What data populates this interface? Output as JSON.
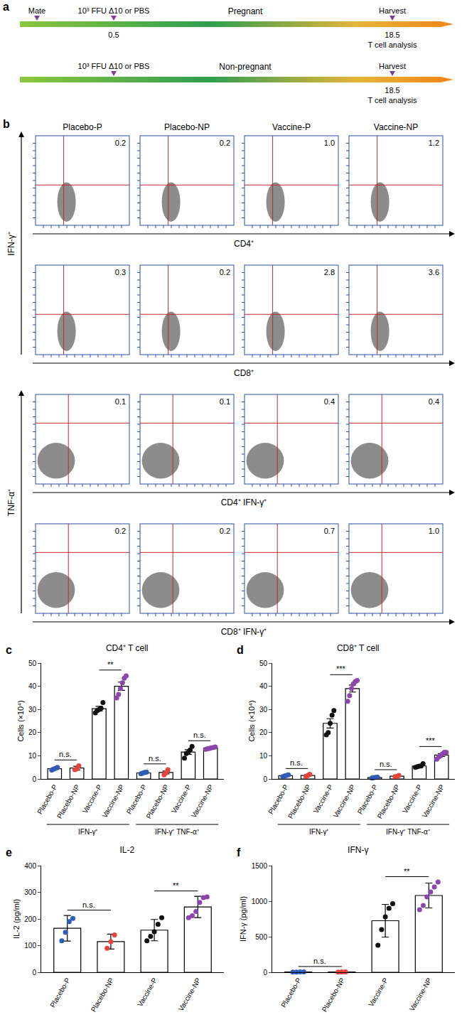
{
  "panel_a": {
    "label": "a",
    "rows": [
      {
        "name": "Pregnant",
        "events": [
          {
            "text": "Mate"
          },
          {
            "text": "10³ FFU Δ10 or PBS",
            "day": "0.5"
          },
          {
            "text": "Harvest",
            "day": "18.5",
            "note": "T cell analysis"
          }
        ]
      },
      {
        "name": "Non-pregnant",
        "events": [
          null,
          {
            "text": "10³ FFU Δ10 or PBS"
          },
          {
            "text": "Harvest",
            "day": "18.5",
            "note": "T cell analysis"
          }
        ]
      }
    ]
  },
  "panel_b": {
    "label": "b",
    "columns": [
      "Placebo-P",
      "Placebo-NP",
      "Vaccine-P",
      "Vaccine-NP"
    ],
    "y_labels": [
      {
        "text": "IFN-γ⁺",
        "rows": 2
      },
      {
        "text": "TNF-α⁺",
        "rows": 2
      }
    ],
    "rows": [
      {
        "x_label": "CD4⁺",
        "values": [
          0.2,
          0.2,
          1.0,
          1.2
        ],
        "value_labels": [
          "0.2",
          "0.2",
          "1.0",
          "1.2"
        ]
      },
      {
        "x_label": "CD8⁺",
        "values": [
          0.3,
          0.2,
          2.8,
          3.6
        ],
        "value_labels": [
          "0.3",
          "0.2",
          "2.8",
          "3.6"
        ]
      },
      {
        "x_label": "CD4⁺ IFN-γ⁺",
        "values": [
          0.1,
          0.1,
          0.4,
          0.4
        ],
        "value_labels": [
          "0.1",
          "0.1",
          "0.4",
          "0.4"
        ]
      },
      {
        "x_label": "CD8⁺ IFN-γ⁺",
        "values": [
          0.2,
          0.2,
          0.7,
          1.0
        ],
        "value_labels": [
          "0.2",
          "0.2",
          "0.7",
          "1.0"
        ]
      }
    ]
  },
  "chart_data": [
    {
      "type": "bar",
      "panel": "c",
      "title": "CD4⁺ T cell",
      "y_label": "Cells (×10⁴)",
      "categories": [
        "Placebo-P",
        "Placebo-NP",
        "Vaccine-P",
        "Vaccine-NP",
        "Placebo-P",
        "Placebo-NP",
        "Vaccine-P",
        "Vaccine-NP"
      ],
      "group_labels": [
        "IFN-γ⁺",
        "IFN-γ⁺ TNF-α⁺"
      ],
      "values": [
        4.4,
        4.7,
        30.3,
        40.0,
        2.6,
        2.8,
        11.6,
        13.3
      ],
      "error": [
        0.4,
        0.8,
        1.0,
        1.8,
        0.3,
        0.6,
        1.0,
        0.3
      ],
      "points": [
        [
          3.8,
          4.2,
          4.6,
          5.0
        ],
        [
          4.0,
          4.4,
          5.7
        ],
        [
          28.5,
          29.5,
          30,
          30.5,
          33
        ],
        [
          35,
          36.5,
          39,
          41.5,
          43.5,
          44.5
        ],
        [
          2.2,
          2.5,
          2.8,
          2.9
        ],
        [
          1.8,
          2.6,
          4.0
        ],
        [
          9,
          11,
          11.5,
          12.5,
          14
        ],
        [
          12.8,
          13,
          13.2,
          13.4,
          13.6,
          13.8
        ]
      ],
      "colors": [
        "#2e5cb8",
        "#e8433a",
        "#111111",
        "#8e44ad",
        "#2e5cb8",
        "#e8433a",
        "#111111",
        "#8e44ad"
      ],
      "comparisons": [
        {
          "pair": [
            0,
            1
          ],
          "label": "n.s."
        },
        {
          "pair": [
            2,
            3
          ],
          "label": "**"
        },
        {
          "pair": [
            4,
            5
          ],
          "label": "n.s."
        },
        {
          "pair": [
            6,
            7
          ],
          "label": "n.s."
        }
      ],
      "ylim": [
        0,
        50
      ],
      "yticks": [
        0,
        10,
        20,
        30,
        40,
        50
      ]
    },
    {
      "type": "bar",
      "panel": "d",
      "title": "CD8⁺ T cell",
      "y_label": "Cells (×10⁴)",
      "categories": [
        "Placebo-P",
        "Placebo-NP",
        "Vaccine-P",
        "Vaccine-NP",
        "Placebo-P",
        "Placebo-NP",
        "Vaccine-P",
        "Vaccine-NP"
      ],
      "group_labels": [
        "IFN-γ⁺",
        "IFN-γ⁺ TNF-α⁺"
      ],
      "values": [
        1.4,
        1.5,
        24.0,
        39.0,
        0.6,
        1.2,
        5.6,
        10.3
      ],
      "error": [
        0.2,
        0.3,
        2.0,
        1.5,
        0.1,
        0.2,
        0.3,
        0.6
      ],
      "points": [
        [
          1.0,
          1.3,
          1.5,
          1.8
        ],
        [
          1.0,
          1.5,
          2.0
        ],
        [
          19,
          20,
          24,
          27.5,
          29.5
        ],
        [
          33.5,
          36,
          39,
          41,
          42,
          42.5
        ],
        [
          0.4,
          0.5,
          0.7,
          0.8
        ],
        [
          1.0,
          1.1,
          1.5
        ],
        [
          5.0,
          5.3,
          5.5,
          5.6,
          6.6
        ],
        [
          8.5,
          9.5,
          10,
          10.8,
          11.5,
          11.5
        ]
      ],
      "colors": [
        "#2e5cb8",
        "#e8433a",
        "#111111",
        "#8e44ad",
        "#2e5cb8",
        "#e8433a",
        "#111111",
        "#8e44ad"
      ],
      "comparisons": [
        {
          "pair": [
            0,
            1
          ],
          "label": "n.s."
        },
        {
          "pair": [
            2,
            3
          ],
          "label": "***"
        },
        {
          "pair": [
            4,
            5
          ],
          "label": "n.s."
        },
        {
          "pair": [
            6,
            7
          ],
          "label": "***"
        }
      ],
      "ylim": [
        0,
        50
      ],
      "yticks": [
        0,
        10,
        20,
        30,
        40,
        50
      ]
    },
    {
      "type": "bar",
      "panel": "e",
      "title": "IL-2",
      "y_label": "IL-2 (pg/ml)",
      "categories": [
        "Placebo-P",
        "Placebo-NP",
        "Vaccine-P",
        "Vaccine-NP"
      ],
      "values": [
        165,
        115,
        158,
        245
      ],
      "error": [
        48,
        28,
        40,
        40
      ],
      "points": [
        [
          118,
          150,
          190,
          202
        ],
        [
          90,
          115,
          140
        ],
        [
          118,
          135,
          152,
          180,
          205
        ],
        [
          205,
          212,
          228,
          262,
          280,
          283
        ]
      ],
      "colors": [
        "#2e5cb8",
        "#e8433a",
        "#111111",
        "#8e44ad"
      ],
      "comparisons": [
        {
          "pair": [
            0,
            1
          ],
          "label": "n.s."
        },
        {
          "pair": [
            2,
            3
          ],
          "label": "**"
        }
      ],
      "ylim": [
        0,
        400
      ],
      "yticks": [
        0,
        100,
        200,
        300,
        400
      ]
    },
    {
      "type": "bar",
      "panel": "f",
      "title": "IFN-γ",
      "y_label": "IFN-γ (pg/ml)",
      "categories": [
        "Placebo-P",
        "Placebo-NP",
        "Vaccine-P",
        "Vaccine-NP"
      ],
      "values": [
        4,
        4,
        725,
        1080
      ],
      "error": [
        2,
        2,
        230,
        175
      ],
      "points": [
        [
          2,
          3,
          5,
          6
        ],
        [
          3,
          4,
          5
        ],
        [
          380,
          600,
          780,
          900,
          965
        ],
        [
          880,
          940,
          1060,
          1130,
          1200,
          1270
        ]
      ],
      "colors": [
        "#2e5cb8",
        "#e8433a",
        "#111111",
        "#8e44ad"
      ],
      "comparisons": [
        {
          "pair": [
            0,
            1
          ],
          "label": "n.s."
        },
        {
          "pair": [
            2,
            3
          ],
          "label": "**"
        }
      ],
      "ylim": [
        0,
        1500
      ],
      "yticks": [
        0,
        500,
        1000,
        1500
      ]
    }
  ]
}
